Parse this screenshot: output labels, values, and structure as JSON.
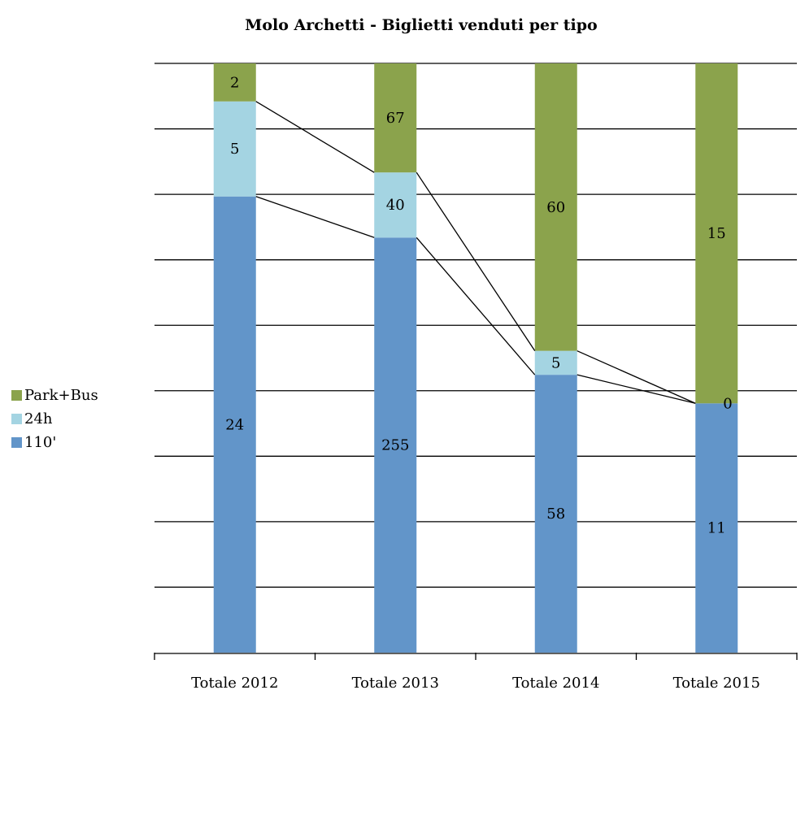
{
  "chart_data": {
    "type": "bar",
    "stacked": "percent",
    "title": "Molo Archetti - Biglietti venduti per tipo",
    "xlabel": "",
    "ylabel": "",
    "ylim": [
      0,
      1
    ],
    "grid": true,
    "legend_position": "left",
    "series_lines": true,
    "categories": [
      "Totale 2012",
      "Totale 2013",
      "Totale 2014",
      "Totale 2015"
    ],
    "series": [
      {
        "name": "110'",
        "color": "#6295c9",
        "values": [
          24,
          255,
          58,
          11
        ],
        "labels": [
          "24",
          "255",
          "58",
          "11"
        ]
      },
      {
        "name": "24h",
        "color": "#a4d4e2",
        "values": [
          5,
          40,
          5,
          0
        ],
        "labels": [
          "5",
          "40",
          "5",
          "0"
        ]
      },
      {
        "name": "Park+Bus",
        "color": "#8ba34c",
        "values": [
          2,
          67,
          60,
          15
        ],
        "labels": [
          "2",
          "67",
          "60",
          "15"
        ]
      }
    ],
    "legend_order": [
      "Park+Bus",
      "24h",
      "110'"
    ]
  }
}
